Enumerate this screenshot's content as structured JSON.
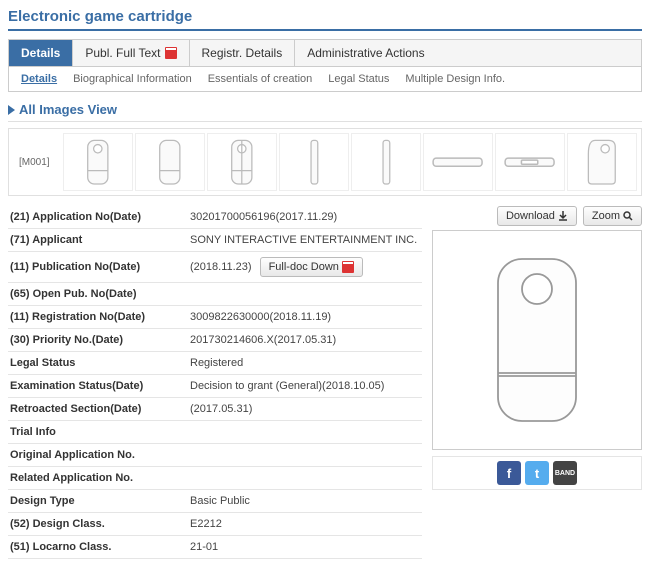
{
  "page_title": "Electronic game cartridge",
  "main_tabs": [
    {
      "label": "Details",
      "active": true
    },
    {
      "label": "Publ. Full Text",
      "active": false,
      "has_pdf": true
    },
    {
      "label": "Registr. Details",
      "active": false
    },
    {
      "label": "Administrative Actions",
      "active": false
    }
  ],
  "sub_tabs": [
    {
      "label": "Details",
      "active": true
    },
    {
      "label": "Biographical Information",
      "active": false
    },
    {
      "label": "Essentials of creation",
      "active": false
    },
    {
      "label": "Legal Status",
      "active": false
    },
    {
      "label": "Multiple Design Info.",
      "active": false
    }
  ],
  "images_section_title": "All Images View",
  "thumb_label": "[M001]",
  "details": [
    {
      "label": "(21) Application No(Date)",
      "value": "30201700056196(2017.11.29)"
    },
    {
      "label": "(71) Applicant",
      "value": "SONY INTERACTIVE ENTERTAINMENT INC."
    },
    {
      "label": "(11) Publication No(Date)",
      "value": "(2018.11.23)",
      "has_fulldoc": true
    },
    {
      "label": "(65) Open Pub. No(Date)",
      "value": ""
    },
    {
      "label": "(11) Registration No(Date)",
      "value": "3009822630000(2018.11.19)"
    },
    {
      "label": "(30) Priority No.(Date)",
      "value": "201730214606.X(2017.05.31)"
    },
    {
      "label": "Legal Status",
      "value": "Registered"
    },
    {
      "label": "Examination Status(Date)",
      "value": "Decision to grant (General)(2018.10.05)"
    },
    {
      "label": "Retroacted Section(Date)",
      "value": "(2017.05.31)"
    },
    {
      "label": "Trial Info",
      "value": ""
    },
    {
      "label": "Original Application No.",
      "value": ""
    },
    {
      "label": "Related Application No.",
      "value": ""
    },
    {
      "label": "Design Type",
      "value": "Basic Public"
    },
    {
      "label": "(52) Design Class.",
      "value": "E2212"
    },
    {
      "label": "(51) Locarno Class.",
      "value": "21-01"
    }
  ],
  "buttons": {
    "download": "Download",
    "zoom": "Zoom",
    "fulldoc": "Full-doc Down"
  },
  "colors": {
    "accent": "#3a6ea5",
    "fb": "#3b5998",
    "tw": "#55acee",
    "band": "#444444"
  }
}
